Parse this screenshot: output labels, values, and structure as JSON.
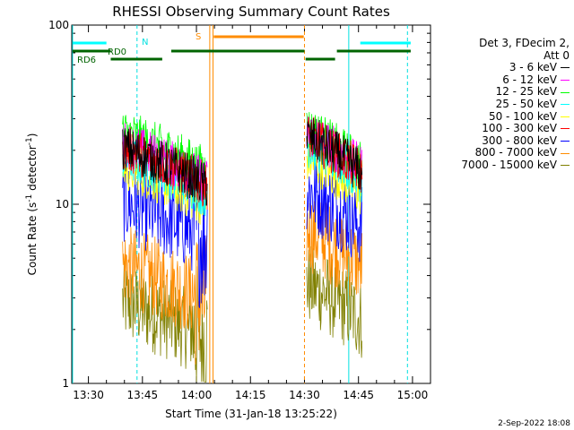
{
  "chart_data": {
    "type": "line",
    "title": "RHESSI Observing Summary Count Rates",
    "xlabel": "Start Time (31-Jan-18 13:25:22)",
    "ylabel_main": "Count Rate (s",
    "ylabel_sup": "-1",
    "ylabel_mid": " detector",
    "ylabel_sup2": "-1",
    "ylabel_end": ")",
    "x_ticks": [
      "13:30",
      "13:45",
      "14:00",
      "14:15",
      "14:30",
      "14:45",
      "15:00"
    ],
    "x_tick_minutes": [
      30,
      45,
      60,
      75,
      90,
      105,
      120
    ],
    "x_range_minutes": [
      25.37,
      125.0
    ],
    "y_scale": "log",
    "y_ticks": [
      "1",
      "10",
      "100"
    ],
    "y_range": [
      1,
      100
    ],
    "legend_header": [
      "Det 3, FDecim 2,",
      "Att 0"
    ],
    "series": [
      {
        "name": "3 - 6 keV",
        "color": "#000000",
        "level1": 18,
        "level2": 20
      },
      {
        "name": "6 - 12 keV",
        "color": "#ff00ff",
        "level1": 19,
        "level2": 21
      },
      {
        "name": "12 - 25 keV",
        "color": "#00ff00",
        "level1": 22,
        "level2": 22
      },
      {
        "name": "25 - 50 keV",
        "color": "#00ffff",
        "level1": 16,
        "level2": 18
      },
      {
        "name": "50 - 100 keV",
        "color": "#ffff00",
        "level1": 14,
        "level2": 15
      },
      {
        "name": "100 - 300 keV",
        "color": "#ff0000",
        "level1": 18,
        "level2": 20
      },
      {
        "name": "300 - 800 keV",
        "color": "#0000ff",
        "level1": 9,
        "level2": 10
      },
      {
        "name": "800 - 7000 keV",
        "color": "#ff8c00",
        "level1": 4,
        "level2": 6
      },
      {
        "name": "7000 - 15000 keV",
        "color": "#808000",
        "level1": 2.5,
        "level2": 3
      }
    ],
    "data_intervals_minutes": [
      [
        39.5,
        63.0
      ],
      [
        90.6,
        106.0
      ]
    ],
    "annotations": {
      "N_label": "N",
      "S_label": "S",
      "RD0_label": "RD0",
      "RD6_label": "RD6"
    },
    "timestamp": "2-Sep-2022 18:08"
  }
}
